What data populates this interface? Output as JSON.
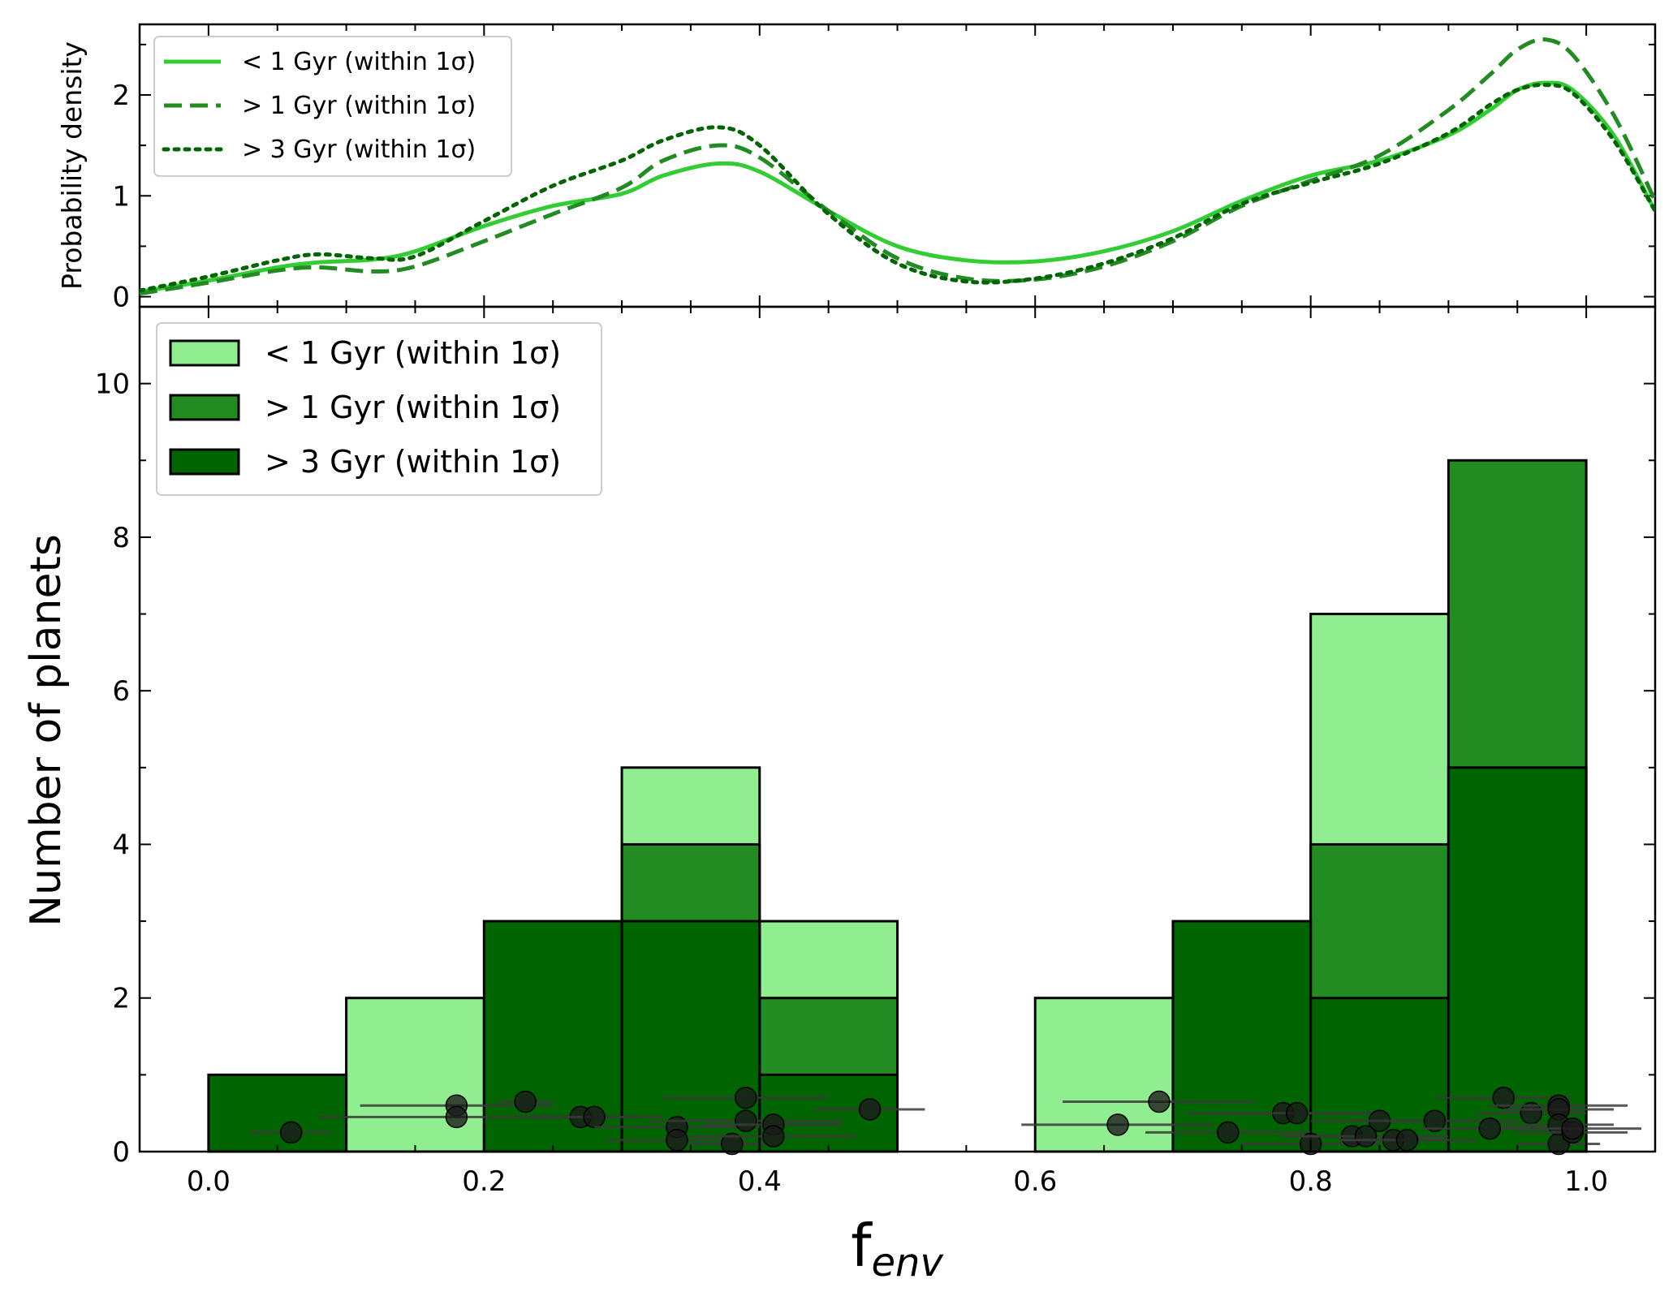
{
  "chart_data": [
    {
      "type": "line",
      "panel": "top",
      "ylabel": "Probability density",
      "xlim": [
        -0.05,
        1.05
      ],
      "ylim": [
        -0.1,
        2.7
      ],
      "yticks": [
        0,
        1,
        2
      ],
      "yticklabels": [
        "0",
        "1",
        "2"
      ],
      "legend": {
        "position": "top-left",
        "entries": [
          "< 1 Gyr (within 1σ)",
          "> 1 Gyr (within 1σ)",
          "> 3 Gyr (within 1σ)"
        ]
      },
      "series": [
        {
          "name": "< 1 Gyr (within 1σ)",
          "style": "solid",
          "color": "#32cd32",
          "x": [
            -0.05,
            0.0,
            0.05,
            0.08,
            0.12,
            0.15,
            0.2,
            0.25,
            0.3,
            0.33,
            0.37,
            0.4,
            0.45,
            0.5,
            0.55,
            0.6,
            0.65,
            0.7,
            0.75,
            0.8,
            0.85,
            0.9,
            0.93,
            0.95,
            0.97,
            0.99,
            1.02,
            1.05
          ],
          "y": [
            0.05,
            0.16,
            0.29,
            0.34,
            0.37,
            0.45,
            0.7,
            0.9,
            1.02,
            1.2,
            1.32,
            1.24,
            0.85,
            0.5,
            0.36,
            0.35,
            0.45,
            0.65,
            0.95,
            1.2,
            1.35,
            1.6,
            1.85,
            2.05,
            2.12,
            2.05,
            1.6,
            0.85
          ]
        },
        {
          "name": "> 1 Gyr (within 1σ)",
          "style": "dashed",
          "color": "#228b22",
          "x": [
            -0.05,
            0.0,
            0.05,
            0.08,
            0.12,
            0.15,
            0.2,
            0.25,
            0.3,
            0.33,
            0.37,
            0.4,
            0.45,
            0.5,
            0.55,
            0.6,
            0.65,
            0.7,
            0.75,
            0.8,
            0.85,
            0.9,
            0.93,
            0.95,
            0.97,
            0.99,
            1.02,
            1.05
          ],
          "y": [
            0.03,
            0.14,
            0.26,
            0.29,
            0.25,
            0.3,
            0.55,
            0.82,
            1.08,
            1.35,
            1.5,
            1.38,
            0.85,
            0.38,
            0.18,
            0.17,
            0.3,
            0.55,
            0.9,
            1.15,
            1.4,
            1.85,
            2.2,
            2.45,
            2.55,
            2.4,
            1.8,
            0.95
          ]
        },
        {
          "name": "> 3 Gyr (within 1σ)",
          "style": "dotted",
          "color": "#006400",
          "x": [
            -0.05,
            0.0,
            0.05,
            0.08,
            0.12,
            0.15,
            0.2,
            0.25,
            0.3,
            0.33,
            0.37,
            0.4,
            0.45,
            0.5,
            0.55,
            0.6,
            0.65,
            0.7,
            0.75,
            0.8,
            0.85,
            0.9,
            0.93,
            0.95,
            0.97,
            0.99,
            1.02,
            1.05
          ],
          "y": [
            0.06,
            0.2,
            0.36,
            0.42,
            0.38,
            0.4,
            0.75,
            1.1,
            1.35,
            1.55,
            1.68,
            1.5,
            0.82,
            0.33,
            0.15,
            0.18,
            0.33,
            0.58,
            0.92,
            1.13,
            1.32,
            1.62,
            1.9,
            2.05,
            2.1,
            2.02,
            1.55,
            0.85
          ]
        }
      ]
    },
    {
      "type": "bar",
      "panel": "bottom",
      "title": "",
      "xlabel_main": "f",
      "xlabel_sub": "env",
      "ylabel": "Number of planets",
      "xlim": [
        -0.05,
        1.05
      ],
      "ylim": [
        0,
        11
      ],
      "xticks": [
        0.0,
        0.2,
        0.4,
        0.6,
        0.8,
        1.0
      ],
      "xticklabels": [
        "0.0",
        "0.2",
        "0.4",
        "0.6",
        "0.8",
        "1.0"
      ],
      "yticks": [
        0,
        2,
        4,
        6,
        8,
        10
      ],
      "yticklabels": [
        "0",
        "2",
        "4",
        "6",
        "8",
        "10"
      ],
      "bin_edges": [
        0.0,
        0.1,
        0.2,
        0.3,
        0.4,
        0.5,
        0.6,
        0.7,
        0.8,
        0.9,
        1.0
      ],
      "legend": {
        "position": "top-left",
        "entries": [
          "< 1 Gyr (within 1σ)",
          "> 1 Gyr (within 1σ)",
          "> 3 Gyr (within 1σ)"
        ]
      },
      "series": [
        {
          "name": "< 1 Gyr (within 1σ)",
          "color": "#90ee90",
          "values": [
            0,
            2,
            0,
            5,
            3,
            0,
            2,
            0,
            7,
            0
          ]
        },
        {
          "name": "> 1 Gyr (within 1σ)",
          "color": "#228b22",
          "values": [
            0,
            0,
            0,
            4,
            2,
            0,
            0,
            0,
            4,
            9
          ]
        },
        {
          "name": "> 3 Gyr (within 1σ)",
          "color": "#006400",
          "values": [
            1,
            0,
            3,
            3,
            1,
            0,
            0,
            3,
            2,
            5
          ]
        }
      ],
      "points": [
        {
          "x": 0.06,
          "y": 0.25,
          "err": 0.03
        },
        {
          "x": 0.18,
          "y": 0.6,
          "err": 0.07
        },
        {
          "x": 0.18,
          "y": 0.45,
          "err": 0.1
        },
        {
          "x": 0.23,
          "y": 0.65,
          "err": 0.02
        },
        {
          "x": 0.27,
          "y": 0.45,
          "err": 0.04
        },
        {
          "x": 0.28,
          "y": 0.45,
          "err": 0.05
        },
        {
          "x": 0.34,
          "y": 0.32,
          "err": 0.06
        },
        {
          "x": 0.34,
          "y": 0.15,
          "err": 0.05
        },
        {
          "x": 0.38,
          "y": 0.1,
          "err": 0.03
        },
        {
          "x": 0.39,
          "y": 0.7,
          "err": 0.06
        },
        {
          "x": 0.39,
          "y": 0.4,
          "err": 0.07
        },
        {
          "x": 0.41,
          "y": 0.35,
          "err": 0.05
        },
        {
          "x": 0.41,
          "y": 0.2,
          "err": 0.06
        },
        {
          "x": 0.48,
          "y": 0.55,
          "err": 0.04
        },
        {
          "x": 0.66,
          "y": 0.35,
          "err": 0.07
        },
        {
          "x": 0.69,
          "y": 0.65,
          "err": 0.07
        },
        {
          "x": 0.74,
          "y": 0.25,
          "err": 0.06
        },
        {
          "x": 0.78,
          "y": 0.5,
          "err": 0.07
        },
        {
          "x": 0.79,
          "y": 0.5,
          "err": 0.06
        },
        {
          "x": 0.8,
          "y": 0.1,
          "err": 0.05
        },
        {
          "x": 0.83,
          "y": 0.2,
          "err": 0.05
        },
        {
          "x": 0.84,
          "y": 0.2,
          "err": 0.06
        },
        {
          "x": 0.85,
          "y": 0.4,
          "err": 0.05
        },
        {
          "x": 0.86,
          "y": 0.15,
          "err": 0.04
        },
        {
          "x": 0.87,
          "y": 0.15,
          "err": 0.05
        },
        {
          "x": 0.89,
          "y": 0.4,
          "err": 0.06
        },
        {
          "x": 0.93,
          "y": 0.3,
          "err": 0.05
        },
        {
          "x": 0.94,
          "y": 0.7,
          "err": 0.05
        },
        {
          "x": 0.96,
          "y": 0.5,
          "err": 0.04
        },
        {
          "x": 0.98,
          "y": 0.6,
          "err": 0.05
        },
        {
          "x": 0.98,
          "y": 0.55,
          "err": 0.04
        },
        {
          "x": 0.98,
          "y": 0.35,
          "err": 0.04
        },
        {
          "x": 0.98,
          "y": 0.1,
          "err": 0.03
        },
        {
          "x": 0.99,
          "y": 0.25,
          "err": 0.04
        },
        {
          "x": 0.99,
          "y": 0.3,
          "err": 0.05
        }
      ]
    }
  ]
}
